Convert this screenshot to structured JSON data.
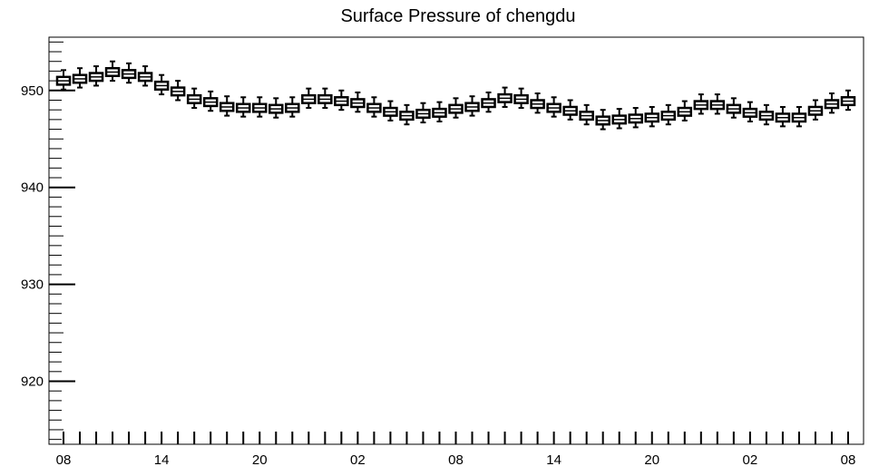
{
  "chart_data": {
    "type": "box",
    "title": "Surface Pressure of chengdu",
    "xlabel": "",
    "ylabel": "",
    "ylim": [
      913.5,
      955.5
    ],
    "y_ticks": [
      920,
      930,
      940,
      950
    ],
    "x_tick_labels": [
      "08",
      "14",
      "20",
      "02",
      "08",
      "14",
      "20",
      "02",
      "08"
    ],
    "x_tick_label_slots": [
      0,
      6,
      12,
      18,
      24,
      30,
      36,
      42,
      48
    ],
    "grid": false,
    "series": [
      {
        "median": [
          951.0,
          951.2,
          951.4,
          951.9,
          951.7,
          951.4,
          950.5,
          949.9,
          949.1,
          948.8,
          948.3,
          948.2,
          948.2,
          948.1,
          948.2,
          949.1,
          949.1,
          948.9,
          948.7,
          948.2,
          947.8,
          947.4,
          947.6,
          947.7,
          948.1,
          948.3,
          948.7,
          949.2,
          949.1,
          948.6,
          948.2,
          947.9,
          947.4,
          946.9,
          947.0,
          947.1,
          947.2,
          947.4,
          947.8,
          948.5,
          948.5,
          948.1,
          947.7,
          947.4,
          947.2,
          947.2,
          947.9,
          948.6,
          948.9
        ],
        "q1": [
          950.6,
          950.8,
          951.0,
          951.5,
          951.3,
          951.0,
          950.1,
          949.5,
          948.7,
          948.4,
          947.9,
          947.8,
          947.8,
          947.7,
          947.8,
          948.7,
          948.7,
          948.5,
          948.3,
          947.8,
          947.4,
          947.0,
          947.2,
          947.3,
          947.7,
          947.9,
          948.3,
          948.8,
          948.7,
          948.2,
          947.8,
          947.5,
          947.0,
          946.5,
          946.6,
          946.7,
          946.8,
          947.0,
          947.4,
          948.1,
          948.1,
          947.7,
          947.3,
          947.0,
          946.8,
          946.8,
          947.5,
          948.2,
          948.5
        ],
        "q3": [
          951.4,
          951.6,
          951.8,
          952.3,
          952.1,
          951.8,
          950.9,
          950.3,
          949.5,
          949.2,
          948.7,
          948.6,
          948.6,
          948.5,
          948.6,
          949.5,
          949.5,
          949.3,
          949.1,
          948.6,
          948.2,
          947.8,
          948.0,
          948.1,
          948.5,
          948.7,
          949.1,
          949.6,
          949.5,
          949.0,
          948.6,
          948.3,
          947.8,
          947.3,
          947.4,
          947.5,
          947.6,
          947.8,
          948.2,
          948.9,
          948.9,
          948.5,
          948.1,
          947.8,
          947.6,
          947.6,
          948.3,
          949.0,
          949.3
        ],
        "whisker_low": [
          950.1,
          950.3,
          950.5,
          951.0,
          950.8,
          950.5,
          949.6,
          949.0,
          948.2,
          947.9,
          947.4,
          947.3,
          947.3,
          947.2,
          947.3,
          948.2,
          948.2,
          948.0,
          947.8,
          947.3,
          946.9,
          946.5,
          946.7,
          946.8,
          947.2,
          947.4,
          947.8,
          948.3,
          948.2,
          947.7,
          947.3,
          947.0,
          946.5,
          946.0,
          946.1,
          946.2,
          946.3,
          946.5,
          946.9,
          947.6,
          947.6,
          947.2,
          946.8,
          946.5,
          946.3,
          946.3,
          947.0,
          947.7,
          948.0
        ],
        "whisker_high": [
          952.1,
          952.3,
          952.5,
          953.0,
          952.8,
          952.5,
          951.6,
          951.0,
          950.2,
          949.9,
          949.4,
          949.3,
          949.3,
          949.2,
          949.3,
          950.2,
          950.2,
          950.0,
          949.8,
          949.3,
          948.9,
          948.5,
          948.7,
          948.8,
          949.2,
          949.4,
          949.8,
          950.3,
          950.2,
          949.7,
          949.3,
          949.0,
          948.5,
          948.0,
          948.1,
          948.2,
          948.3,
          948.5,
          948.9,
          949.6,
          949.6,
          949.2,
          948.8,
          948.5,
          948.3,
          948.3,
          949.0,
          949.7,
          950.0
        ]
      }
    ]
  }
}
